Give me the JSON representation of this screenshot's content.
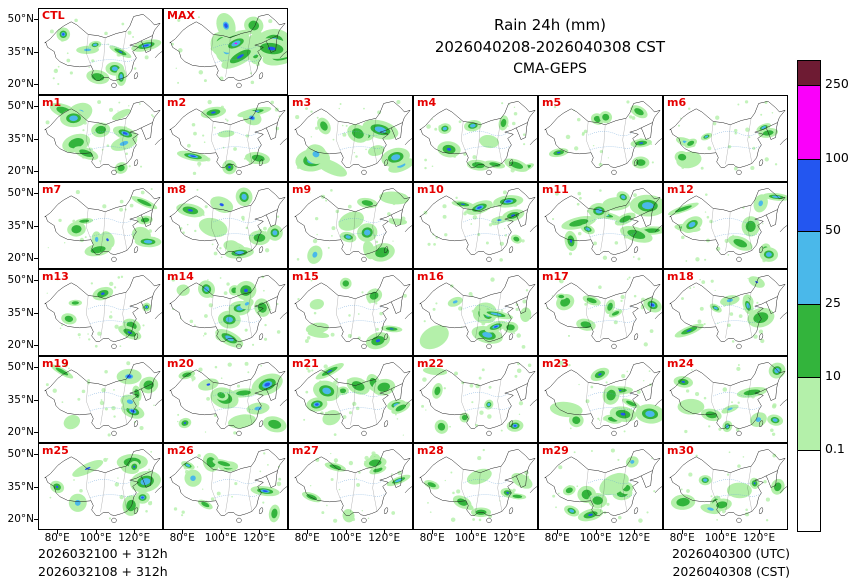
{
  "chart_data": {
    "type": "heatmap",
    "subtype": "ensemble-precipitation-map-grid",
    "title": "Rain 24h (mm)",
    "valid_period": "2026040208-2026040308 CST",
    "model": "CMA-GEPS",
    "panels": [
      "CTL",
      "MAX",
      "m1",
      "m2",
      "m3",
      "m4",
      "m5",
      "m6",
      "m7",
      "m8",
      "m9",
      "m10",
      "m11",
      "m12",
      "m13",
      "m14",
      "m15",
      "m16",
      "m17",
      "m18",
      "m19",
      "m20",
      "m21",
      "m22",
      "m23",
      "m24",
      "m25",
      "m26",
      "m27",
      "m28",
      "m29",
      "m30"
    ],
    "grid": {
      "rows": 6,
      "cols": 6,
      "row1": "CTL and MAX only, title occupies remaining space"
    },
    "x_ticks": [
      "80°E",
      "100°E",
      "120°E"
    ],
    "y_ticks": [
      "50°N",
      "35°N",
      "20°N"
    ],
    "panel_label_color": "#e50000",
    "colorbar": {
      "units": "mm",
      "levels_bottom_to_top": [
        "0.1",
        "10",
        "25",
        "50",
        "100",
        "250"
      ],
      "colors_bottom_to_top": [
        "#ffffff",
        "#b4f0aa",
        "#33b43c",
        "#4ab8ea",
        "#2356f0",
        "#fa00fa",
        "#6e1b33"
      ]
    },
    "init_labels": [
      "2026032100 + 312h",
      "2026032108 + 312h"
    ],
    "valid_labels": [
      "2026040300 (UTC)",
      "2026040308 (CST)"
    ]
  }
}
